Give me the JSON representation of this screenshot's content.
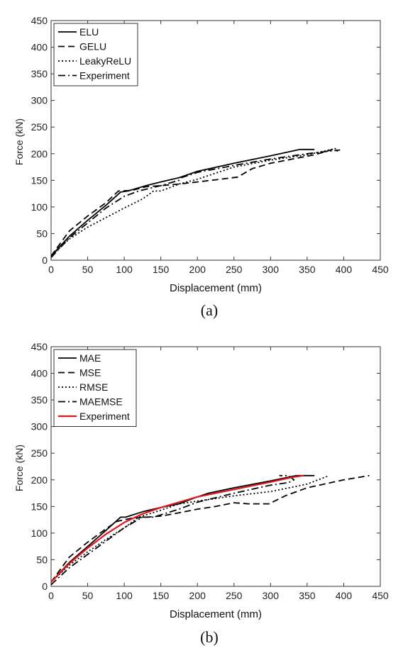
{
  "chart_data": [
    {
      "type": "line",
      "panel_label": "(a)",
      "xlabel": "Displacement (mm)",
      "ylabel": "Force (kN)",
      "xlim": [
        0,
        450
      ],
      "ylim": [
        0,
        450
      ],
      "xticks": [
        0,
        50,
        100,
        150,
        200,
        250,
        300,
        350,
        400,
        450
      ],
      "yticks": [
        0,
        50,
        100,
        150,
        200,
        250,
        300,
        350,
        400,
        450
      ],
      "grid": false,
      "legend_position": "top-left",
      "series": [
        {
          "name": "ELU",
          "color": "#000000",
          "dash": "solid",
          "points": [
            [
              0,
              8
            ],
            [
              25,
              45
            ],
            [
              50,
              75
            ],
            [
              75,
              103
            ],
            [
              95,
              128
            ],
            [
              105,
              130
            ],
            [
              130,
              140
            ],
            [
              150,
              147
            ],
            [
              175,
              155
            ],
            [
              200,
              167
            ],
            [
              250,
              182
            ],
            [
              300,
              196
            ],
            [
              340,
              208
            ],
            [
              360,
              208
            ]
          ]
        },
        {
          "name": "GELU",
          "color": "#000000",
          "dash": "dashed",
          "points": [
            [
              0,
              8
            ],
            [
              25,
              55
            ],
            [
              50,
              83
            ],
            [
              75,
              108
            ],
            [
              92,
              130
            ],
            [
              110,
              131
            ],
            [
              130,
              138
            ],
            [
              150,
              140
            ],
            [
              175,
              143
            ],
            [
              200,
              147
            ],
            [
              225,
              151
            ],
            [
              255,
              156
            ],
            [
              275,
              172
            ],
            [
              300,
              182
            ],
            [
              330,
              190
            ],
            [
              360,
              198
            ],
            [
              385,
              208
            ],
            [
              392,
              205
            ]
          ]
        },
        {
          "name": "LeakyReLU",
          "color": "#000000",
          "dash": "dotted",
          "points": [
            [
              0,
              8
            ],
            [
              25,
              40
            ],
            [
              50,
              62
            ],
            [
              75,
              80
            ],
            [
              100,
              98
            ],
            [
              125,
              115
            ],
            [
              140,
              130
            ],
            [
              150,
              130
            ],
            [
              175,
              143
            ],
            [
              200,
              152
            ],
            [
              250,
              175
            ],
            [
              300,
              188
            ],
            [
              350,
              198
            ],
            [
              390,
              210
            ]
          ]
        },
        {
          "name": "Experiment",
          "color": "#000000",
          "dash": "dashdot",
          "points": [
            [
              0,
              5
            ],
            [
              25,
              42
            ],
            [
              50,
              70
            ],
            [
              75,
              98
            ],
            [
              100,
              120
            ],
            [
              120,
              130
            ],
            [
              150,
              140
            ],
            [
              175,
              150
            ],
            [
              178,
              155
            ],
            [
              200,
              165
            ],
            [
              250,
              178
            ],
            [
              300,
              190
            ],
            [
              350,
              200
            ],
            [
              395,
              207
            ]
          ]
        }
      ]
    },
    {
      "type": "line",
      "panel_label": "(b)",
      "xlabel": "Displacement (mm)",
      "ylabel": "Force (kN)",
      "xlim": [
        0,
        450
      ],
      "ylim": [
        0,
        450
      ],
      "xticks": [
        0,
        50,
        100,
        150,
        200,
        250,
        300,
        350,
        400,
        450
      ],
      "yticks": [
        0,
        50,
        100,
        150,
        200,
        250,
        300,
        350,
        400,
        450
      ],
      "grid": false,
      "legend_position": "top-left",
      "series": [
        {
          "name": "MAE",
          "color": "#000000",
          "dash": "solid",
          "points": [
            [
              0,
              8
            ],
            [
              25,
              45
            ],
            [
              50,
              75
            ],
            [
              75,
              105
            ],
            [
              95,
              130
            ],
            [
              102,
              130
            ],
            [
              125,
              140
            ],
            [
              150,
              148
            ],
            [
              175,
              155
            ],
            [
              200,
              168
            ],
            [
              215,
              175
            ],
            [
              250,
              185
            ],
            [
              300,
              198
            ],
            [
              335,
              208
            ],
            [
              360,
              208
            ]
          ]
        },
        {
          "name": "MSE",
          "color": "#000000",
          "dash": "dashed",
          "points": [
            [
              0,
              8
            ],
            [
              25,
              55
            ],
            [
              50,
              83
            ],
            [
              75,
              108
            ],
            [
              90,
              122
            ],
            [
              110,
              128
            ],
            [
              130,
              130
            ],
            [
              150,
              132
            ],
            [
              175,
              138
            ],
            [
              200,
              145
            ],
            [
              225,
              150
            ],
            [
              250,
              157
            ],
            [
              270,
              155
            ],
            [
              298,
              155
            ],
            [
              320,
              170
            ],
            [
              350,
              185
            ],
            [
              400,
              200
            ],
            [
              435,
              208
            ]
          ]
        },
        {
          "name": "RMSE",
          "color": "#000000",
          "dash": "dotted",
          "points": [
            [
              0,
              8
            ],
            [
              25,
              40
            ],
            [
              50,
              65
            ],
            [
              75,
              88
            ],
            [
              100,
              110
            ],
            [
              120,
              130
            ],
            [
              150,
              143
            ],
            [
              175,
              155
            ],
            [
              185,
              157
            ],
            [
              200,
              160
            ],
            [
              250,
              170
            ],
            [
              300,
              178
            ],
            [
              350,
              192
            ],
            [
              380,
              208
            ]
          ]
        },
        {
          "name": "MAEMSE",
          "color": "#000000",
          "dash": "dashdot",
          "points": [
            [
              0,
              3
            ],
            [
              25,
              35
            ],
            [
              50,
              60
            ],
            [
              75,
              85
            ],
            [
              100,
              110
            ],
            [
              125,
              130
            ],
            [
              140,
              130
            ],
            [
              175,
              145
            ],
            [
              200,
              158
            ],
            [
              250,
              175
            ],
            [
              300,
              190
            ],
            [
              325,
              195
            ],
            [
              332,
              200
            ],
            [
              325,
              208
            ],
            [
              312,
              208
            ]
          ]
        },
        {
          "name": "Experiment",
          "color": "#e0171b",
          "dash": "solid",
          "points": [
            [
              0,
              8
            ],
            [
              25,
              43
            ],
            [
              50,
              72
            ],
            [
              75,
              98
            ],
            [
              100,
              120
            ],
            [
              125,
              136
            ],
            [
              150,
              148
            ],
            [
              175,
              158
            ],
            [
              200,
              168
            ],
            [
              250,
              182
            ],
            [
              300,
              196
            ],
            [
              330,
              205
            ],
            [
              345,
              208
            ]
          ]
        }
      ]
    }
  ]
}
